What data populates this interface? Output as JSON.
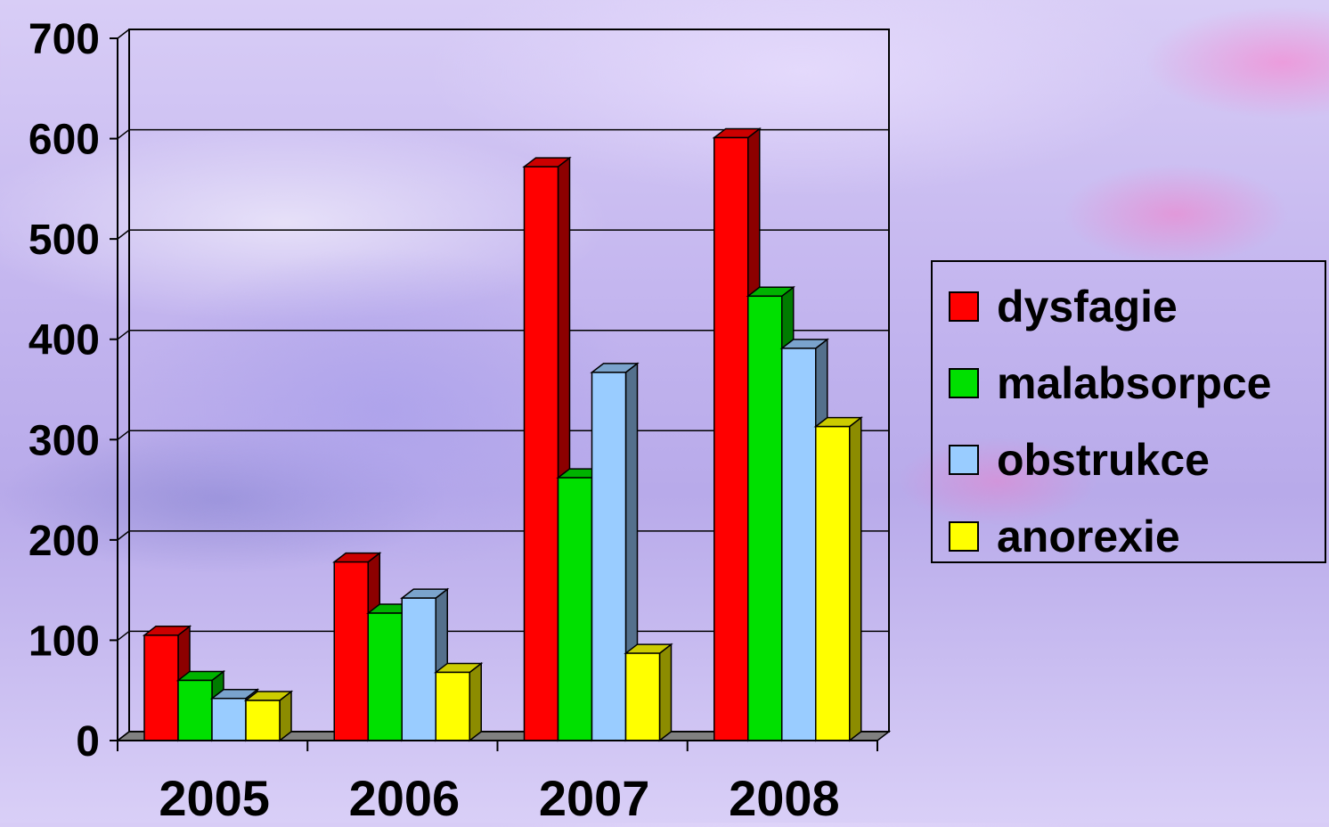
{
  "chart_data": {
    "type": "bar",
    "categories": [
      "2005",
      "2006",
      "2007",
      "2008"
    ],
    "series": [
      {
        "name": "dysfagie",
        "values": [
          105,
          178,
          572,
          601
        ],
        "color": "#ff0000"
      },
      {
        "name": "malabsorpce",
        "values": [
          60,
          127,
          262,
          443
        ],
        "color": "#00e000"
      },
      {
        "name": "obstrukce",
        "values": [
          42,
          142,
          367,
          391
        ],
        "color": "#99ccff"
      },
      {
        "name": "anorexie",
        "values": [
          40,
          68,
          87,
          313
        ],
        "color": "#ffff00"
      }
    ],
    "y_ticks": [
      "0",
      "100",
      "200",
      "300",
      "400",
      "500",
      "600",
      "700"
    ],
    "ylim": [
      0,
      700
    ],
    "grid": true,
    "legend_position": "right",
    "style": "3d-clustered-column"
  }
}
